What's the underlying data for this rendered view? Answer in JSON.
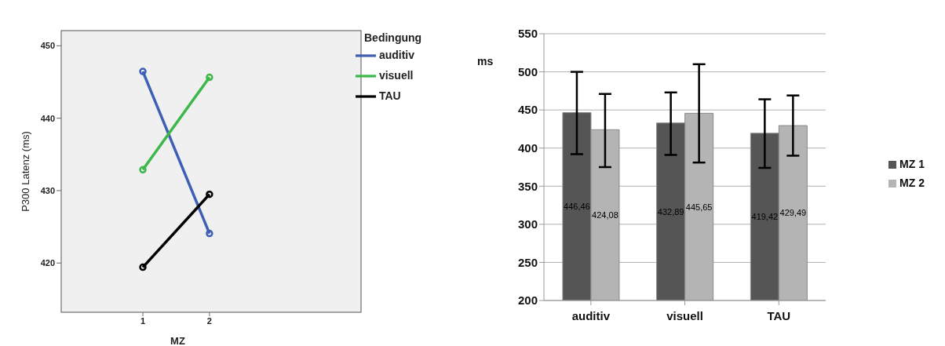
{
  "chart_data": [
    {
      "type": "line",
      "categories": [
        "1",
        "2"
      ],
      "xlabel": "MZ",
      "ylabel": "P300 Latenz (ms)",
      "legend_title": "Bedingung",
      "ylim": [
        413.2,
        452.1
      ],
      "yticks": [
        420,
        430,
        440,
        450
      ],
      "grid": false,
      "legend": "top right",
      "marker": "circle",
      "line_style": "solid",
      "series": [
        {
          "name": "auditiv",
          "color": "#3f5fb4",
          "values": [
            446.46,
            424.08
          ]
        },
        {
          "name": "visuell",
          "color": "#3cb84a",
          "values": [
            432.89,
            445.65
          ]
        },
        {
          "name": "TAU",
          "color": "#000000",
          "values": [
            419.42,
            429.49
          ]
        }
      ]
    },
    {
      "type": "bar",
      "categories": [
        "auditiv",
        "visuell",
        "TAU"
      ],
      "ylabel": "ms",
      "ylim": [
        200,
        550
      ],
      "yticks": [
        200,
        250,
        300,
        350,
        400,
        450,
        500,
        550
      ],
      "grid": "y",
      "legend": "right",
      "series": [
        {
          "name": "MZ 1",
          "color": "#555555",
          "values": [
            446.46,
            432.89,
            419.42
          ],
          "value_labels": [
            "446,46",
            "432,89",
            "419,42"
          ],
          "errors": [
            [
              392,
              500
            ],
            [
              391,
              473
            ],
            [
              374,
              464
            ]
          ]
        },
        {
          "name": "MZ 2",
          "color": "#b4b4b4",
          "values": [
            424.08,
            445.65,
            429.49
          ],
          "value_labels": [
            "424,08",
            "445,65",
            "429,49"
          ],
          "errors": [
            [
              375,
              471
            ],
            [
              381,
              510
            ],
            [
              390,
              469
            ]
          ]
        }
      ]
    }
  ]
}
